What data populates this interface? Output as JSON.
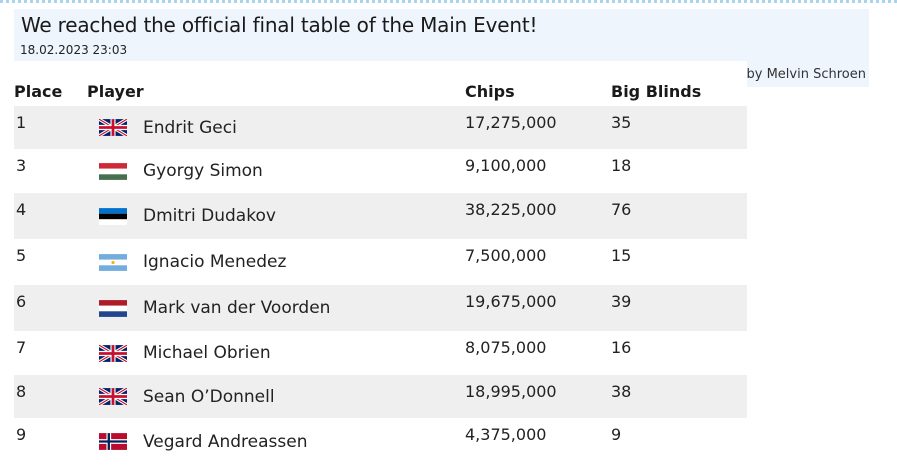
{
  "header": {
    "title": "We reached the official final table of the Main Event!",
    "timestamp": "18.02.2023 23:03",
    "author": "by Melvin Schroen"
  },
  "table": {
    "columns": [
      "Place",
      "Player",
      "Chips",
      "Big Blinds"
    ],
    "rows": [
      {
        "place": "1",
        "player": "Endrit Geci",
        "flag": "united-kingdom-flag-icon",
        "chips": "17,275,000",
        "big_blinds": "35"
      },
      {
        "place": "3",
        "player": "Gyorgy Simon",
        "flag": "hungary-flag-icon",
        "chips": "9,100,000",
        "big_blinds": "18"
      },
      {
        "place": "4",
        "player": "Dmitri Dudakov",
        "flag": "estonia-flag-icon",
        "chips": "38,225,000",
        "big_blinds": "76"
      },
      {
        "place": "5",
        "player": "Ignacio Menedez",
        "flag": "argentina-flag-icon",
        "chips": "7,500,000",
        "big_blinds": "15"
      },
      {
        "place": "6",
        "player": "Mark van der Voorden",
        "flag": "netherlands-flag-icon",
        "chips": "19,675,000",
        "big_blinds": "39"
      },
      {
        "place": "7",
        "player": "Michael Obrien",
        "flag": "united-kingdom-flag-icon",
        "chips": "8,075,000",
        "big_blinds": "16"
      },
      {
        "place": "8",
        "player": "Sean O’Donnell",
        "flag": "united-kingdom-flag-icon",
        "chips": "18,995,000",
        "big_blinds": "38"
      },
      {
        "place": "9",
        "player": "Vegard Andreassen",
        "flag": "norway-flag-icon",
        "chips": "4,375,000",
        "big_blinds": "9"
      }
    ]
  },
  "colors": {
    "header_bg": "#eef5fd",
    "row_alt_bg": "#efefef",
    "top_border": "#a9d4ef"
  }
}
